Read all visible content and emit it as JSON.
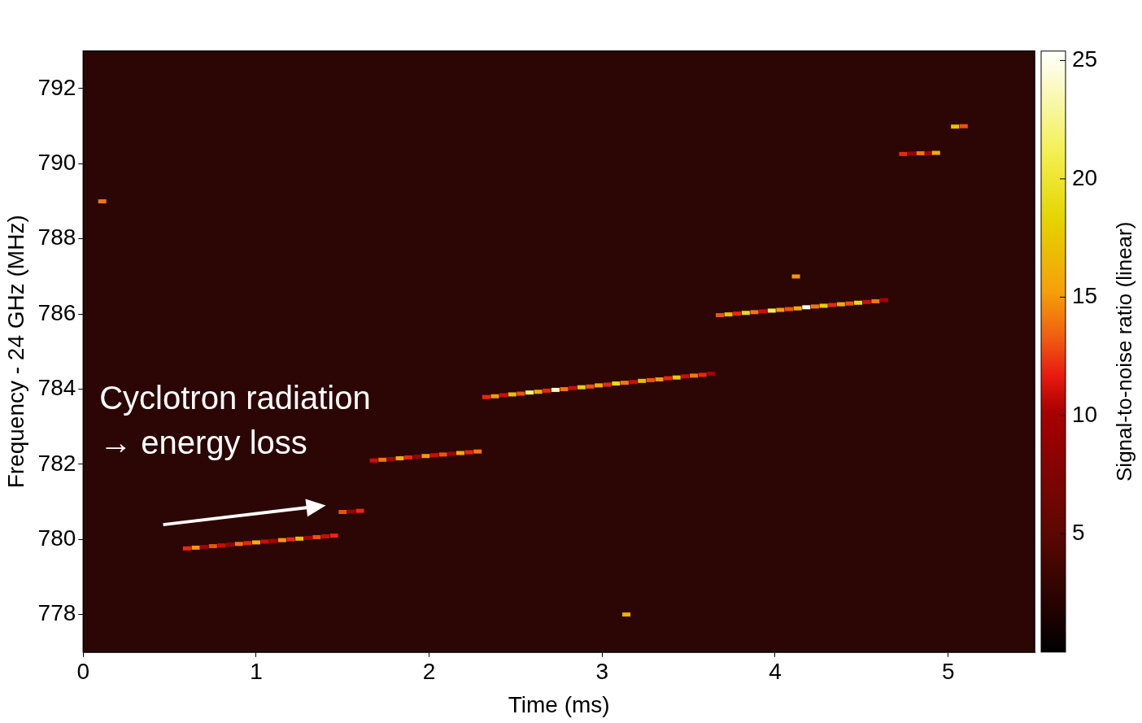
{
  "chart_data": {
    "type": "spectrogram",
    "x_label": "Time (ms)",
    "y_label": "Frequency - 24 GHz (MHz)",
    "xlim": [
      0,
      5.5
    ],
    "xticks": [
      0,
      1,
      2,
      3,
      4,
      5
    ],
    "ylim": [
      777,
      793
    ],
    "yticks": [
      778,
      780,
      782,
      784,
      786,
      788,
      790,
      792
    ],
    "grid": false,
    "marker": "square",
    "annotation": [
      "Cyclotron radiation",
      "→ energy loss"
    ],
    "colorbar": {
      "lim": [
        0,
        25.4
      ],
      "ticks": [
        5,
        10,
        15,
        20,
        25
      ],
      "title": "Signal-to-noise ratio (linear)"
    },
    "tracks": [
      {
        "time": [
          0.6,
          0.65,
          0.7,
          0.75,
          0.8,
          0.85,
          0.9,
          0.95,
          1.0,
          1.05,
          1.1,
          1.15,
          1.2,
          1.25,
          1.3,
          1.35,
          1.4,
          1.45
        ],
        "frequency": [
          779.76,
          779.78,
          779.8,
          779.82,
          779.84,
          779.86,
          779.88,
          779.9,
          779.92,
          779.94,
          779.96,
          779.98,
          780.0,
          780.02,
          780.04,
          780.06,
          780.08,
          780.1
        ],
        "snr": [
          12,
          15,
          10,
          13,
          11,
          9,
          14,
          12,
          16,
          11,
          10,
          15,
          12,
          17,
          10,
          13,
          11,
          12
        ]
      },
      {
        "time": [
          1.5,
          1.55,
          1.6
        ],
        "frequency": [
          780.73,
          780.74,
          780.76
        ],
        "snr": [
          13,
          9,
          12
        ]
      },
      {
        "time": [
          1.68,
          1.73,
          1.78,
          1.83,
          1.88,
          1.93,
          1.98,
          2.03,
          2.08,
          2.13,
          2.18,
          2.23,
          2.28
        ],
        "frequency": [
          782.1,
          782.12,
          782.14,
          782.16,
          782.18,
          782.2,
          782.22,
          782.24,
          782.26,
          782.28,
          782.3,
          782.32,
          782.34
        ],
        "snr": [
          11,
          14,
          10,
          16,
          12,
          9,
          15,
          11,
          13,
          10,
          16,
          12,
          14
        ]
      },
      {
        "time": [
          2.33,
          2.38,
          2.43,
          2.48,
          2.53,
          2.58,
          2.63,
          2.68,
          2.73,
          2.78,
          2.83,
          2.88,
          2.93,
          2.98,
          3.03,
          3.08,
          3.13,
          3.18,
          3.23,
          3.28,
          3.33,
          3.38,
          3.43,
          3.48,
          3.53,
          3.58,
          3.63
        ],
        "frequency": [
          783.79,
          783.81,
          783.84,
          783.86,
          783.88,
          783.91,
          783.93,
          783.96,
          783.98,
          784.0,
          784.03,
          784.05,
          784.07,
          784.1,
          784.12,
          784.15,
          784.17,
          784.19,
          784.22,
          784.24,
          784.26,
          784.29,
          784.31,
          784.34,
          784.36,
          784.38,
          784.41
        ],
        "snr": [
          12,
          15,
          11,
          17,
          13,
          22,
          16,
          12,
          24,
          14,
          11,
          18,
          13,
          16,
          12,
          19,
          14,
          11,
          17,
          13,
          15,
          12,
          18,
          11,
          14,
          12,
          10
        ]
      },
      {
        "time": [
          3.68,
          3.73,
          3.78,
          3.83,
          3.88,
          3.93,
          3.98,
          4.03,
          4.08,
          4.13,
          4.18,
          4.23,
          4.28,
          4.33,
          4.38,
          4.43,
          4.48,
          4.53,
          4.58,
          4.63
        ],
        "frequency": [
          785.97,
          785.99,
          786.01,
          786.03,
          786.05,
          786.07,
          786.09,
          786.11,
          786.13,
          786.15,
          786.18,
          786.2,
          786.22,
          786.24,
          786.26,
          786.28,
          786.3,
          786.32,
          786.34,
          786.37
        ],
        "snr": [
          13,
          17,
          12,
          19,
          14,
          11,
          21,
          15,
          13,
          16,
          25,
          14,
          18,
          12,
          16,
          13,
          19,
          11,
          14,
          10
        ]
      },
      {
        "time": [
          4.74,
          4.79,
          4.84,
          4.89,
          4.93
        ],
        "frequency": [
          790.26,
          790.27,
          790.28,
          790.28,
          790.29
        ],
        "snr": [
          12,
          9,
          14,
          10,
          16
        ]
      },
      {
        "time": [
          5.04,
          5.09
        ],
        "frequency": [
          790.99,
          791.0
        ],
        "snr": [
          17,
          13
        ]
      },
      {
        "time": [
          0.11,
          4.12,
          3.14
        ],
        "frequency": [
          789.0,
          787.0,
          778.0
        ],
        "snr": [
          14,
          15,
          16
        ]
      }
    ]
  }
}
